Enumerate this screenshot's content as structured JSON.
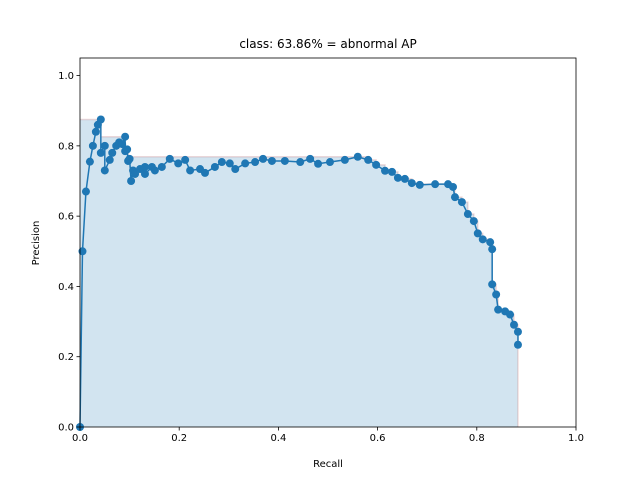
{
  "chart_data": {
    "type": "line",
    "title": "class: 63.86% = abnormal AP",
    "xlabel": "Recall",
    "ylabel": "Precision",
    "color": "#1f77b4",
    "fill_color": "#1f77b4",
    "x": [
      0,
      0.005,
      0.012,
      0.02,
      0.026,
      0.032,
      0.036,
      0.042,
      0.042,
      0.05,
      0.05,
      0.06,
      0.065,
      0.073,
      0.079,
      0.085,
      0.091,
      0.091,
      0.095,
      0.097,
      0.1,
      0.103,
      0.107,
      0.111,
      0.121,
      0.131,
      0.131,
      0.145,
      0.151,
      0.165,
      0.181,
      0.198,
      0.212,
      0.222,
      0.242,
      0.252,
      0.272,
      0.286,
      0.302,
      0.313,
      0.333,
      0.353,
      0.369,
      0.387,
      0.413,
      0.444,
      0.464,
      0.48,
      0.504,
      0.534,
      0.56,
      0.581,
      0.597,
      0.615,
      0.629,
      0.641,
      0.655,
      0.669,
      0.685,
      0.716,
      0.742,
      0.752,
      0.756,
      0.77,
      0.782,
      0.794,
      0.802,
      0.812,
      0.827,
      0.831,
      0.831,
      0.839,
      0.843,
      0.857,
      0.867,
      0.875,
      0.883,
      0.883
    ],
    "values": [
      0,
      0.5,
      0.67,
      0.755,
      0.8,
      0.84,
      0.86,
      0.875,
      0.78,
      0.8,
      0.73,
      0.76,
      0.78,
      0.8,
      0.81,
      0.805,
      0.826,
      0.785,
      0.79,
      0.757,
      0.763,
      0.7,
      0.73,
      0.72,
      0.734,
      0.74,
      0.72,
      0.74,
      0.73,
      0.74,
      0.763,
      0.75,
      0.76,
      0.73,
      0.734,
      0.723,
      0.74,
      0.754,
      0.75,
      0.734,
      0.75,
      0.754,
      0.763,
      0.757,
      0.757,
      0.754,
      0.763,
      0.749,
      0.754,
      0.76,
      0.769,
      0.76,
      0.746,
      0.729,
      0.726,
      0.709,
      0.706,
      0.694,
      0.689,
      0.691,
      0.691,
      0.683,
      0.654,
      0.64,
      0.606,
      0.586,
      0.551,
      0.534,
      0.526,
      0.506,
      0.406,
      0.377,
      0.334,
      0.329,
      0.32,
      0.291,
      0.271,
      0.234
    ],
    "xlim": [
      0,
      1
    ],
    "ylim": [
      0,
      1.05
    ],
    "xticks": [
      {
        "value": 0,
        "label": "0.0"
      },
      {
        "value": 0.2,
        "label": "0.2"
      },
      {
        "value": 0.4,
        "label": "0.4"
      },
      {
        "value": 0.6,
        "label": "0.6"
      },
      {
        "value": 0.8,
        "label": "0.8"
      },
      {
        "value": 1,
        "label": "1.0"
      }
    ],
    "yticks": [
      {
        "value": 0,
        "label": "0.0"
      },
      {
        "value": 0.2,
        "label": "0.2"
      },
      {
        "value": 0.4,
        "label": "0.4"
      },
      {
        "value": 0.6,
        "label": "0.6"
      },
      {
        "value": 0.8,
        "label": "0.8"
      },
      {
        "value": 1,
        "label": "1.0"
      }
    ]
  }
}
